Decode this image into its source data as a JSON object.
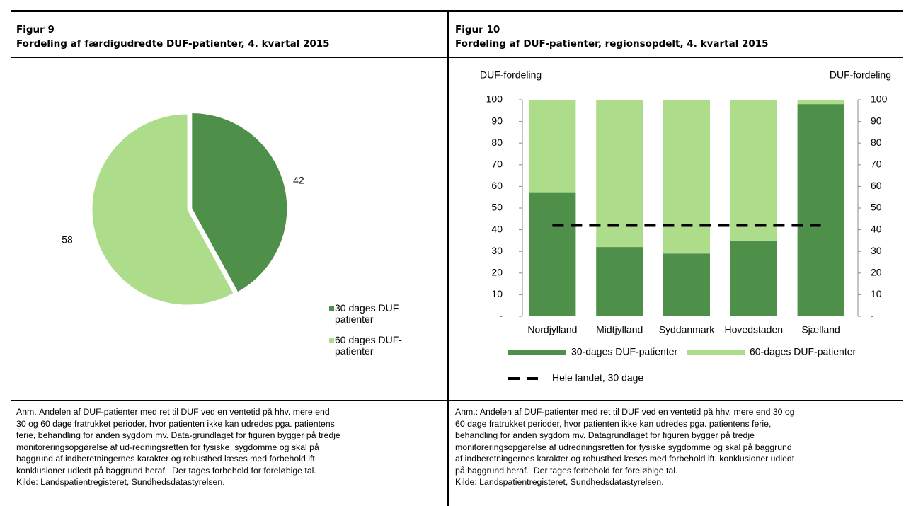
{
  "chart_data": [
    {
      "type": "pie",
      "label": "Figur 9",
      "title": "Fordeling af færdigudredte DUF-patienter, 4. kvartal 2015",
      "categories": [
        "30 dages DUF patienter",
        "60 dages DUF-patienter"
      ],
      "values": [
        42,
        58
      ],
      "colors": [
        "#4e8f4a",
        "#addd8a"
      ],
      "note": [
        "Anm.:Andelen af DUF-patienter med ret til DUF ved en ventetid på hhv. mere end",
        "30 og 60 dage fratrukket perioder, hvor patienten ikke kan udredes pga. patientens",
        "ferie, behandling for anden sygdom mv. Data-grundlaget for figuren bygger på tredje",
        "monitoreringsopgørelse af ud-redningsretten for fysiske  sygdomme og skal på",
        "baggrund af indberetningernes karakter og robusthed læses med forbehold ift.",
        "konklusioner udledt på baggrund heraf.  Der tages forbehold for foreløbige tal.",
        "Kilde: Landspatientregisteret, Sundhedsdatastyrelsen."
      ]
    },
    {
      "type": "bar",
      "label": "Figur 10",
      "title": "Fordeling af DUF-patienter, regionsopdelt, 4. kvartal 2015",
      "ylabel": "DUF-fordeling",
      "y2label": "DUF-fordeling",
      "categories": [
        "Nordjylland",
        "Midtjylland",
        "Syddanmark",
        "Hovedstaden",
        "Sjælland"
      ],
      "series": [
        {
          "name": "30-dages DUF-patienter",
          "color": "#4e8f4a",
          "values": [
            57,
            32,
            29,
            35,
            98
          ]
        },
        {
          "name": "60-dages DUF-patienter",
          "color": "#addd8a",
          "values": [
            43,
            68,
            71,
            65,
            2
          ]
        },
        {
          "name": "Hele landet, 30 dage",
          "type": "line",
          "color": "#000000",
          "values": [
            42,
            42,
            42,
            42,
            42
          ]
        }
      ],
      "stacked": true,
      "ylim": [
        0,
        100
      ],
      "yticks": [
        {
          "value": 0,
          "label": "-"
        },
        10,
        20,
        30,
        40,
        50,
        60,
        70,
        80,
        90,
        100
      ],
      "y2lim": [
        0,
        100
      ],
      "y2ticks": [
        {
          "value": 0,
          "label": "-"
        },
        10,
        20,
        30,
        40,
        50,
        60,
        70,
        80,
        90,
        100
      ],
      "note": [
        "Anm.: Andelen af DUF-patienter med ret til DUF ved en ventetid på hhv. mere end 30 og",
        "60 dage fratrukket perioder, hvor patienten ikke kan udredes pga. patientens ferie,",
        "behandling for anden sygdom mv. Datagrundlaget for figuren bygger på tredje",
        "monitoreringsopgørelse af udredningsretten for fysiske sygdomme og skal på baggrund",
        "af indberetningernes karakter og robusthed læses med forbehold ift. konklusioner udledt",
        "på baggrund heraf.  Der tages forbehold for foreløbige tal.",
        "Kilde: Landspatientregisteret, Sundhedsdatastyrelsen."
      ]
    }
  ]
}
